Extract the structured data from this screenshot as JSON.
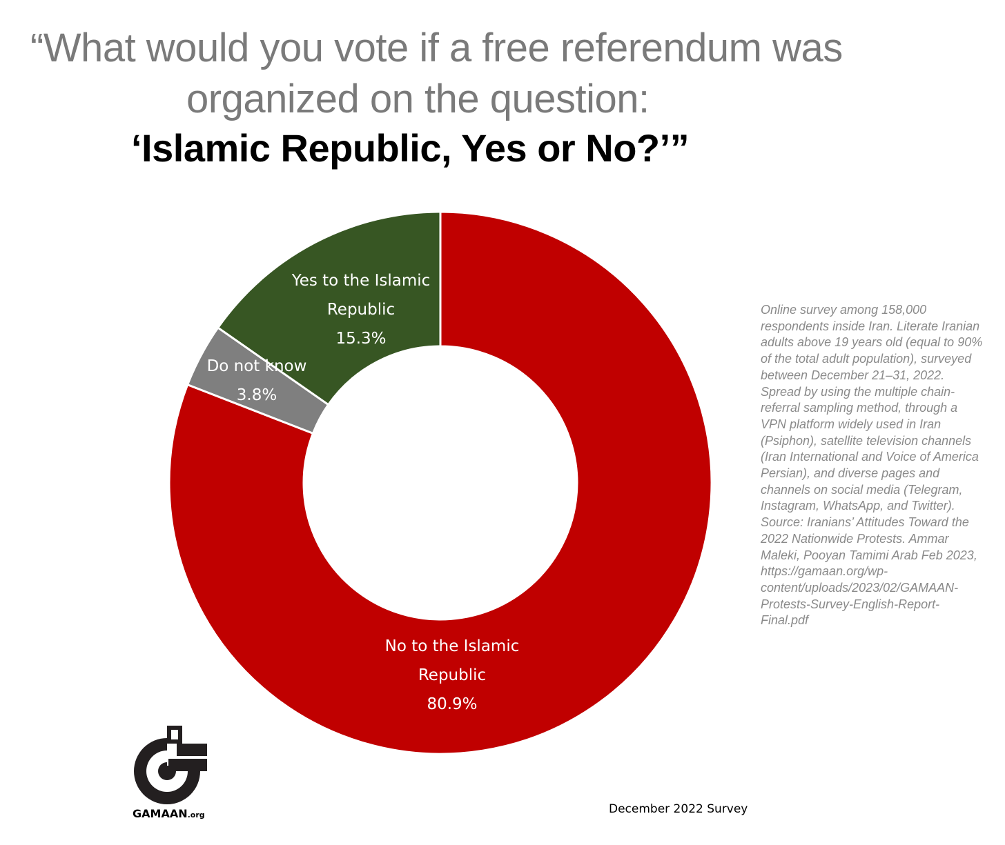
{
  "title": {
    "line1": "“What would you vote if a free referendum was",
    "line2": "organized on the question:",
    "line3": "‘Islamic Republic, Yes or No?’”"
  },
  "note": "Online survey among 158,000\nrespondents inside Iran. Literate Iranian\nadults above 19 years old (equal to 90%\nof the total adult population), surveyed\nbetween December 21–31, 2022.\nSpread by using the multiple chain-\nreferral sampling method, through a\nVPN platform widely used in Iran\n(Psiphon), satellite television channels\n(Iran International and Voice of America\nPersian), and diverse pages and\nchannels on social media (Telegram,\nInstagram, WhatsApp, and Twitter).\nSource: Iranians’ Attitudes Toward the\n2022 Nationwide Protests. Ammar\nMaleki, Pooyan Tamimi Arab Feb 2023,\nhttps://gamaan.org/wp-\ncontent/uploads/2023/02/GAMAAN-\nProtests-Survey-English-Report-\nFinal.pdf",
  "logo": {
    "name": "GAMAAN",
    "suffix": ".org"
  },
  "survey_date": "December 2022 Survey",
  "chart_data": {
    "type": "pie",
    "subtype": "donut",
    "slices": [
      {
        "label_lines": [
          "No to the Islamic",
          "Republic"
        ],
        "value": 80.9,
        "value_label": "80.9%",
        "color": "#c00000"
      },
      {
        "label_lines": [
          "Do not know"
        ],
        "value": 3.8,
        "value_label": "3.8%",
        "color": "#7f7f7f"
      },
      {
        "label_lines": [
          "Yes to the Islamic",
          "Republic"
        ],
        "value": 15.3,
        "value_label": "15.3%",
        "color": "#375623"
      }
    ],
    "start": "12 o'clock",
    "direction": "clockwise",
    "legend": "none"
  }
}
